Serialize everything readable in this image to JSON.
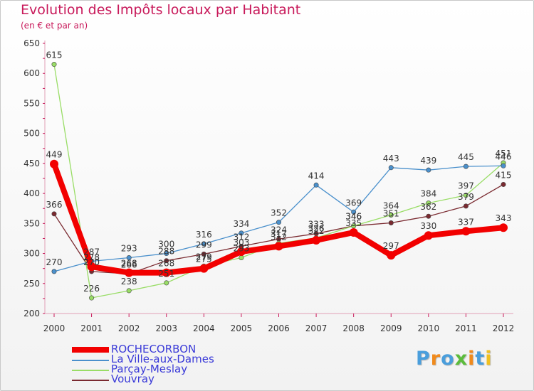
{
  "title": "Evolution des Impôts locaux par Habitant",
  "subtitle": "(en € et par an)",
  "logo_text": "Proxiti",
  "chart_data": {
    "type": "line",
    "title": "Evolution des Impôts locaux par Habitant",
    "subtitle": "(en € et par an)",
    "xlabel": "",
    "ylabel": "",
    "x": [
      "2000",
      "2001",
      "2002",
      "2003",
      "2004",
      "2005",
      "2006",
      "2007",
      "2008",
      "2009",
      "2010",
      "2011",
      "2012"
    ],
    "ylim": [
      200,
      650
    ],
    "yticks": [
      200,
      250,
      300,
      350,
      400,
      450,
      500,
      550,
      600,
      650
    ],
    "grid": false,
    "legend_position": "bottom-left",
    "series": [
      {
        "name": "ROCHECORBON",
        "color": "#f20000",
        "values": [
          449,
          278,
          268,
          268,
          275,
          303,
          312,
          322,
          335,
          297,
          330,
          337,
          343
        ]
      },
      {
        "name": "La Ville-aux-Dames",
        "color": "#4a90cc",
        "values": [
          270,
          287,
          293,
          300,
          316,
          334,
          352,
          414,
          369,
          443,
          439,
          445,
          446
        ]
      },
      {
        "name": "Parçay-Meslay",
        "color": "#99dd66",
        "values": [
          615,
          226,
          238,
          251,
          279,
          293,
          317,
          326,
          346,
          364,
          384,
          397,
          451
        ]
      },
      {
        "name": "Vouvray",
        "color": "#7a2a30",
        "values": [
          366,
          270,
          266,
          288,
          299,
          312,
          324,
          333,
          346,
          351,
          362,
          379,
          415
        ]
      }
    ]
  }
}
